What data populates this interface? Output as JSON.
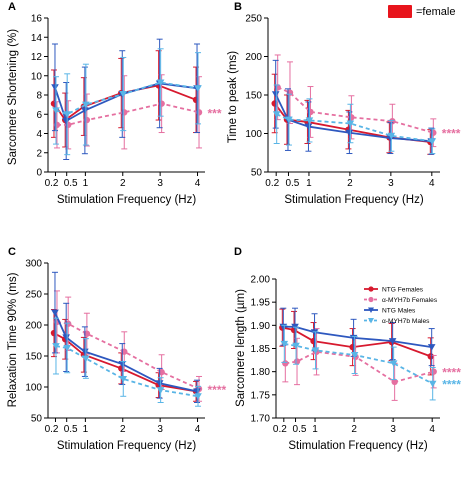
{
  "figure": {
    "legend_box_color": "#e8141c",
    "legend_box_label": "=female"
  },
  "series_styles": [
    {
      "key": "ntg_f",
      "color": "#d7192e",
      "dash": false,
      "marker": "circle"
    },
    {
      "key": "myh_f",
      "color": "#e56fa0",
      "dash": true,
      "marker": "circle"
    },
    {
      "key": "ntg_m",
      "color": "#2e58bf",
      "dash": false,
      "marker": "triangle-down"
    },
    {
      "key": "myh_m",
      "color": "#59b5e6",
      "dash": true,
      "marker": "triangle-down"
    }
  ],
  "chart_data": [
    {
      "panel": "A",
      "type": "line",
      "xlabel": "Stimulation Frequency (Hz)",
      "ylabel": "Sarcomere Shortening (%)",
      "x": [
        0.2,
        0.5,
        1,
        2,
        3,
        4
      ],
      "xticks": [
        "0.2",
        "0.5",
        "1",
        "2",
        "3",
        "4"
      ],
      "xlim": [
        0,
        4.2
      ],
      "ylim": [
        0,
        16
      ],
      "yticks": [
        0,
        2,
        4,
        6,
        8,
        10,
        12,
        14,
        16
      ],
      "annotations": [
        {
          "text": "***",
          "color": "#e56fa0",
          "series": 1
        }
      ],
      "series": [
        {
          "values": [
            7.1,
            5.4,
            6.8,
            8.2,
            9.0,
            7.5
          ],
          "err": [
            3.5,
            2.8,
            3.0,
            3.6,
            3.6,
            3.4
          ]
        },
        {
          "values": [
            4.9,
            4.9,
            5.4,
            6.2,
            7.1,
            6.2
          ],
          "err": [
            2.4,
            2.5,
            2.7,
            3.8,
            3.0,
            3.7
          ]
        },
        {
          "values": [
            8.8,
            5.3,
            6.4,
            8.1,
            9.2,
            8.7
          ],
          "err": [
            4.5,
            4.0,
            4.5,
            4.5,
            4.6,
            4.6
          ]
        },
        {
          "values": [
            6.4,
            6.0,
            7.0,
            8.1,
            9.3,
            8.7
          ],
          "err": [
            3.5,
            4.2,
            4.2,
            3.8,
            3.5,
            3.7
          ]
        }
      ]
    },
    {
      "panel": "B",
      "type": "line",
      "xlabel": "Stimulation Frequency (Hz)",
      "ylabel": "Time to peak (ms)",
      "x": [
        0.2,
        0.5,
        1,
        2,
        3,
        4
      ],
      "xticks": [
        "0.2",
        "0.5",
        "1",
        "2",
        "3",
        "4"
      ],
      "xlim": [
        0,
        4.2
      ],
      "ylim": [
        50,
        250
      ],
      "yticks": [
        50,
        100,
        150,
        200,
        250
      ],
      "annotations": [
        {
          "text": "****",
          "color": "#e56fa0",
          "series": 1
        }
      ],
      "series": [
        {
          "values": [
            139,
            118,
            115,
            105,
            95,
            89
          ],
          "err": [
            38,
            32,
            28,
            25,
            20,
            16
          ]
        },
        {
          "values": [
            160,
            153,
            128,
            121,
            116,
            101
          ],
          "err": [
            42,
            40,
            33,
            28,
            22,
            18
          ]
        },
        {
          "values": [
            151,
            118,
            109,
            101,
            94,
            90
          ],
          "err": [
            44,
            40,
            32,
            27,
            20,
            17
          ]
        },
        {
          "values": [
            125,
            118,
            117,
            113,
            97,
            90
          ],
          "err": [
            38,
            33,
            28,
            25,
            20,
            16
          ]
        }
      ]
    },
    {
      "panel": "C",
      "type": "line",
      "xlabel": "Stimulation Frequency (Hz)",
      "ylabel": "Relaxation Time 90% (ms)",
      "x": [
        0.2,
        0.5,
        1,
        2,
        3,
        4
      ],
      "xticks": [
        "0.2",
        "0.5",
        "1",
        "2",
        "3",
        "4"
      ],
      "xlim": [
        0,
        4.2
      ],
      "ylim": [
        50,
        300
      ],
      "yticks": [
        50,
        100,
        150,
        200,
        250,
        300
      ],
      "annotations": [
        {
          "text": "****",
          "color": "#e56fa0",
          "series": 1
        }
      ],
      "series": [
        {
          "values": [
            187,
            177,
            152,
            130,
            103,
            93
          ],
          "err": [
            38,
            32,
            28,
            25,
            20,
            16
          ]
        },
        {
          "values": [
            205,
            202,
            186,
            157,
            124,
            97
          ],
          "err": [
            50,
            43,
            33,
            32,
            28,
            20
          ]
        },
        {
          "values": [
            220,
            180,
            157,
            137,
            106,
            93
          ],
          "err": [
            65,
            55,
            40,
            33,
            24,
            18
          ]
        },
        {
          "values": [
            166,
            163,
            146,
            113,
            95,
            85
          ],
          "err": [
            45,
            40,
            32,
            28,
            20,
            16
          ]
        }
      ]
    },
    {
      "panel": "D",
      "type": "line",
      "xlabel": "Stimulation Frequency (Hz)",
      "ylabel": "Sarcomere length (µm)",
      "x": [
        0.2,
        0.5,
        1,
        2,
        3,
        4
      ],
      "xticks": [
        "0.2",
        "0.5",
        "1",
        "2",
        "3",
        "4"
      ],
      "xlim": [
        0,
        4.2
      ],
      "ylim": [
        1.7,
        2.0
      ],
      "yticks": [
        1.7,
        1.75,
        1.8,
        1.85,
        1.9,
        1.95,
        2.0
      ],
      "legend": {
        "position": "top-right",
        "labels": [
          "NTG Females",
          "α-MYH7b Females",
          "NTG Males",
          "α-MYH7b Males"
        ]
      },
      "annotations": [
        {
          "text": "****",
          "color": "#e56fa0",
          "series": 1
        },
        {
          "text": "****",
          "color": "#59b5e6",
          "series": 3
        }
      ],
      "series": [
        {
          "values": [
            1.895,
            1.89,
            1.866,
            1.853,
            1.864,
            1.833
          ],
          "err": [
            0.04,
            0.04,
            0.04,
            0.04,
            0.04,
            0.04
          ]
        },
        {
          "values": [
            1.818,
            1.822,
            1.843,
            1.832,
            1.778,
            1.8
          ],
          "err": [
            0.04,
            0.05,
            0.05,
            0.04,
            0.04,
            0.035
          ]
        },
        {
          "values": [
            1.897,
            1.897,
            1.885,
            1.873,
            1.866,
            1.853
          ],
          "err": [
            0.04,
            0.04,
            0.04,
            0.04,
            0.04,
            0.04
          ]
        },
        {
          "values": [
            1.86,
            1.856,
            1.846,
            1.836,
            1.818,
            1.774
          ],
          "err": [
            0.04,
            0.04,
            0.04,
            0.04,
            0.035,
            0.035
          ]
        }
      ]
    }
  ]
}
